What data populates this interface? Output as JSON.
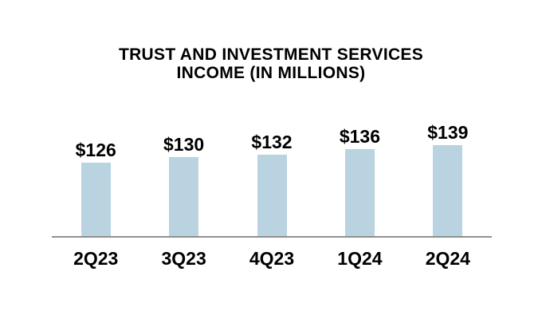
{
  "title": {
    "line1": "TRUST AND INVESTMENT SERVICES",
    "line2": "INCOME (IN MILLIONS)"
  },
  "chart_data": {
    "type": "bar",
    "title": "TRUST AND INVESTMENT SERVICES INCOME (IN MILLIONS)",
    "categories": [
      "2Q23",
      "3Q23",
      "4Q23",
      "1Q24",
      "2Q24"
    ],
    "values": [
      126,
      130,
      132,
      136,
      139
    ],
    "value_labels": [
      "$126",
      "$130",
      "$132",
      "$136",
      "$139"
    ],
    "xlabel": "",
    "ylabel": "",
    "ylim": [
      70,
      150
    ],
    "grid": false,
    "legend_position": "none",
    "colors": {
      "bar": "#B9D3E0",
      "axis_line": "#909090",
      "text": "#000000",
      "background": "#FFFFFF"
    }
  }
}
